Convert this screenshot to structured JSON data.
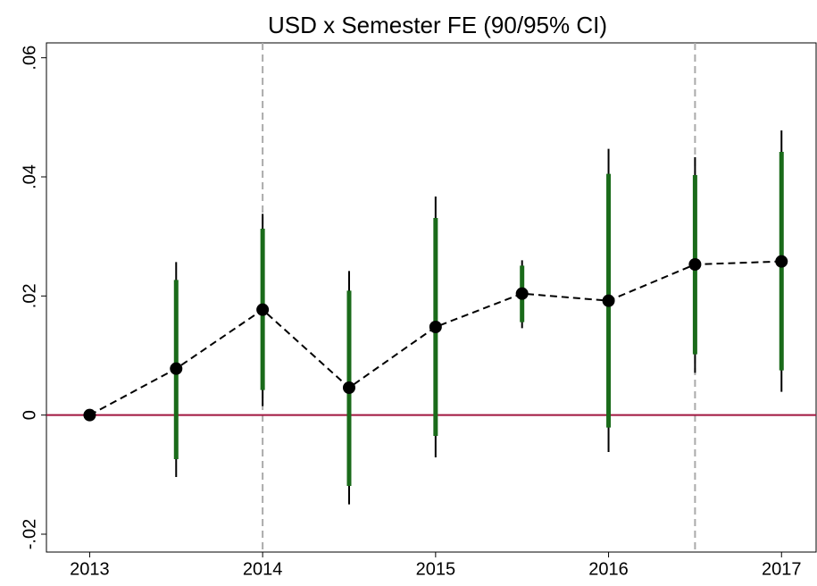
{
  "chart_data": {
    "type": "errorbar",
    "title": "USD x Semester FE (90/95% CI)",
    "x": [
      2013,
      2013.5,
      2014,
      2014.5,
      2015,
      2015.5,
      2016,
      2016.5,
      2017
    ],
    "values": [
      0,
      0.0078,
      0.0177,
      0.0046,
      0.0148,
      0.0204,
      0.0192,
      0.0253,
      0.0258
    ],
    "ci95_low": [
      null,
      -0.0104,
      0.0015,
      -0.015,
      -0.0071,
      0.0146,
      -0.0062,
      0.0071,
      0.0039
    ],
    "ci95_high": [
      null,
      0.0257,
      0.0338,
      0.0242,
      0.0367,
      0.026,
      0.0447,
      0.0433,
      0.0478
    ],
    "ci90_low": [
      null,
      -0.0074,
      0.0042,
      -0.0119,
      -0.0035,
      0.0156,
      -0.0021,
      0.0102,
      0.0075
    ],
    "ci90_high": [
      null,
      0.0227,
      0.0313,
      0.0209,
      0.0331,
      0.0251,
      0.0405,
      0.0403,
      0.0442
    ],
    "color": "#000000",
    "ci95_color": "#000000",
    "ci90_color": "#1a6b1a",
    "ref_line_y": 0,
    "ref_line_color": "#a0153e",
    "vlines": [
      2014,
      2016.5
    ],
    "vline_color": "#aaaaaa",
    "xlim": [
      2012.75,
      2017.2
    ],
    "xticks": [
      2013,
      2014,
      2015,
      2016,
      2017
    ],
    "ylim": [
      -0.023,
      0.0625
    ],
    "yticks": [
      {
        "value": -0.02,
        "label": "-.02"
      },
      0,
      {
        "value": 0.02,
        "label": ".02"
      },
      {
        "value": 0.04,
        "label": ".04"
      },
      {
        "value": 0.06,
        "label": ".06"
      }
    ]
  }
}
